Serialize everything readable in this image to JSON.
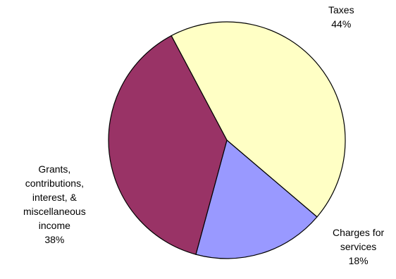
{
  "chart_data": {
    "type": "pie",
    "title": "",
    "start_angle_deg": 118,
    "direction": "clockwise",
    "outline": "#000000",
    "slices": [
      {
        "name": "Taxes",
        "label_lines": [
          "Taxes",
          "44%"
        ],
        "value": 44,
        "color": "#ffffc5"
      },
      {
        "name": "Charges for services",
        "label_lines": [
          "Charges for",
          "services",
          "18%"
        ],
        "value": 18,
        "color": "#9999ff"
      },
      {
        "name": "Grants, contributions, interest, & miscellaneous income",
        "label_lines": [
          "Grants,",
          "contributions,",
          "interest, &",
          "miscellaneous",
          "income",
          "38%"
        ],
        "value": 38,
        "color": "#993366"
      }
    ]
  }
}
